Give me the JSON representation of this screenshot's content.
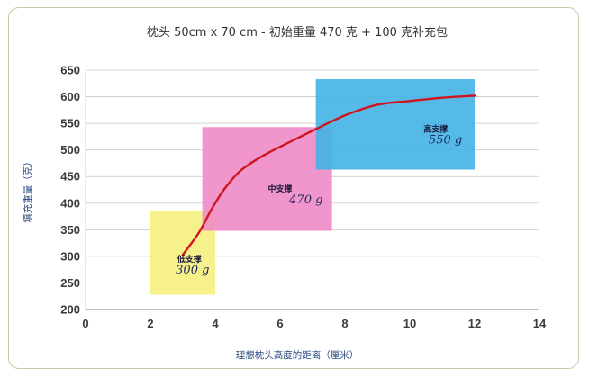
{
  "chart_data": {
    "type": "line",
    "title": "枕头 50cm x 70 cm - 初始重量 470 克 + 100 克补充包",
    "xlabel": "理想枕头高度的距离（厘米）",
    "ylabel": "填充重量（克）",
    "xlim": [
      0,
      14
    ],
    "ylim": [
      200,
      650
    ],
    "xticks": [
      0,
      2,
      4,
      6,
      8,
      10,
      12,
      14
    ],
    "yticks": [
      200,
      250,
      300,
      350,
      400,
      450,
      500,
      550,
      600,
      650
    ],
    "grid": "horizontal",
    "series": [
      {
        "color": "#d0141e",
        "x": [
          3.0,
          3.5,
          3.9,
          4.3,
          4.8,
          5.5,
          6.3,
          7.2,
          8.0,
          9.0,
          10.0,
          11.0,
          12.0
        ],
        "y": [
          303,
          345,
          390,
          428,
          462,
          490,
          515,
          542,
          565,
          585,
          592,
          598,
          602
        ]
      }
    ],
    "zones": [
      {
        "label": "低支撑",
        "weight_label": "300 g",
        "x": [
          2.0,
          4.0
        ],
        "y": [
          228,
          385
        ],
        "color": "#f6f07e"
      },
      {
        "label": "中支撑",
        "weight_label": "470 g",
        "x": [
          3.6,
          7.6
        ],
        "y": [
          348,
          543
        ],
        "color": "#f08bc6"
      },
      {
        "label": "高支撑",
        "weight_label": "550 g",
        "x": [
          7.1,
          12.0
        ],
        "y": [
          463,
          633
        ],
        "color": "#42b2e6"
      }
    ]
  }
}
